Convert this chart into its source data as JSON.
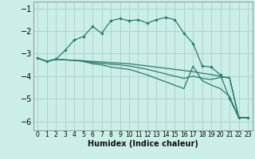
{
  "xlabel": "Humidex (Indice chaleur)",
  "bg_color": "#cceee8",
  "grid_color": "#aad4cc",
  "line_color": "#2a7a6a",
  "xlim": [
    -0.5,
    23.5
  ],
  "ylim": [
    -6.4,
    -0.7
  ],
  "yticks": [
    -6,
    -5,
    -4,
    -3,
    -2,
    -1
  ],
  "xticks": [
    0,
    1,
    2,
    3,
    4,
    5,
    6,
    7,
    8,
    9,
    10,
    11,
    12,
    13,
    14,
    15,
    16,
    17,
    18,
    19,
    20,
    21,
    22,
    23
  ],
  "series": [
    {
      "x": [
        0,
        1,
        2,
        3,
        4,
        5,
        6,
        7,
        8,
        9,
        10,
        11,
        12,
        13,
        14,
        15,
        16,
        17,
        18,
        19,
        20,
        21,
        22,
        23
      ],
      "y": [
        -3.2,
        -3.35,
        -3.25,
        -3.28,
        -3.3,
        -3.32,
        -3.35,
        -3.37,
        -3.4,
        -3.42,
        -3.45,
        -3.5,
        -3.55,
        -3.6,
        -3.65,
        -3.7,
        -3.75,
        -3.8,
        -3.87,
        -3.93,
        -4.0,
        -4.1,
        -5.83,
        -5.85
      ],
      "marker": false
    },
    {
      "x": [
        0,
        1,
        2,
        3,
        4,
        5,
        6,
        7,
        8,
        9,
        10,
        11,
        12,
        13,
        14,
        15,
        16,
        17,
        18,
        19,
        20,
        21,
        22,
        23
      ],
      "y": [
        -3.2,
        -3.35,
        -3.25,
        -3.28,
        -3.3,
        -3.32,
        -3.4,
        -3.43,
        -3.47,
        -3.5,
        -3.55,
        -3.62,
        -3.7,
        -3.8,
        -3.9,
        -4.0,
        -4.1,
        -4.0,
        -4.1,
        -4.15,
        -4.05,
        -4.05,
        -5.83,
        -5.85
      ],
      "marker": false
    },
    {
      "x": [
        0,
        1,
        2,
        3,
        4,
        5,
        6,
        7,
        8,
        9,
        10,
        11,
        12,
        13,
        14,
        15,
        16,
        17,
        18,
        19,
        20,
        21,
        22,
        23
      ],
      "y": [
        -3.2,
        -3.35,
        -3.25,
        -3.28,
        -3.3,
        -3.35,
        -3.45,
        -3.5,
        -3.6,
        -3.65,
        -3.7,
        -3.82,
        -3.95,
        -4.1,
        -4.25,
        -4.4,
        -4.55,
        -3.55,
        -4.2,
        -4.4,
        -4.55,
        -4.9,
        -5.83,
        -5.85
      ],
      "marker": false
    },
    {
      "x": [
        0,
        1,
        2,
        3,
        4,
        5,
        6,
        7,
        8,
        9,
        10,
        11,
        12,
        13,
        14,
        15,
        16,
        17,
        18,
        19,
        20,
        21,
        22,
        23
      ],
      "y": [
        -3.2,
        -3.35,
        -3.25,
        -2.85,
        -2.4,
        -2.25,
        -1.8,
        -2.1,
        -1.55,
        -1.45,
        -1.55,
        -1.5,
        -1.65,
        -1.5,
        -1.4,
        -1.5,
        -2.1,
        -2.55,
        -3.55,
        -3.6,
        -3.95,
        -5.0,
        -5.83,
        -5.85
      ],
      "marker": true
    }
  ]
}
